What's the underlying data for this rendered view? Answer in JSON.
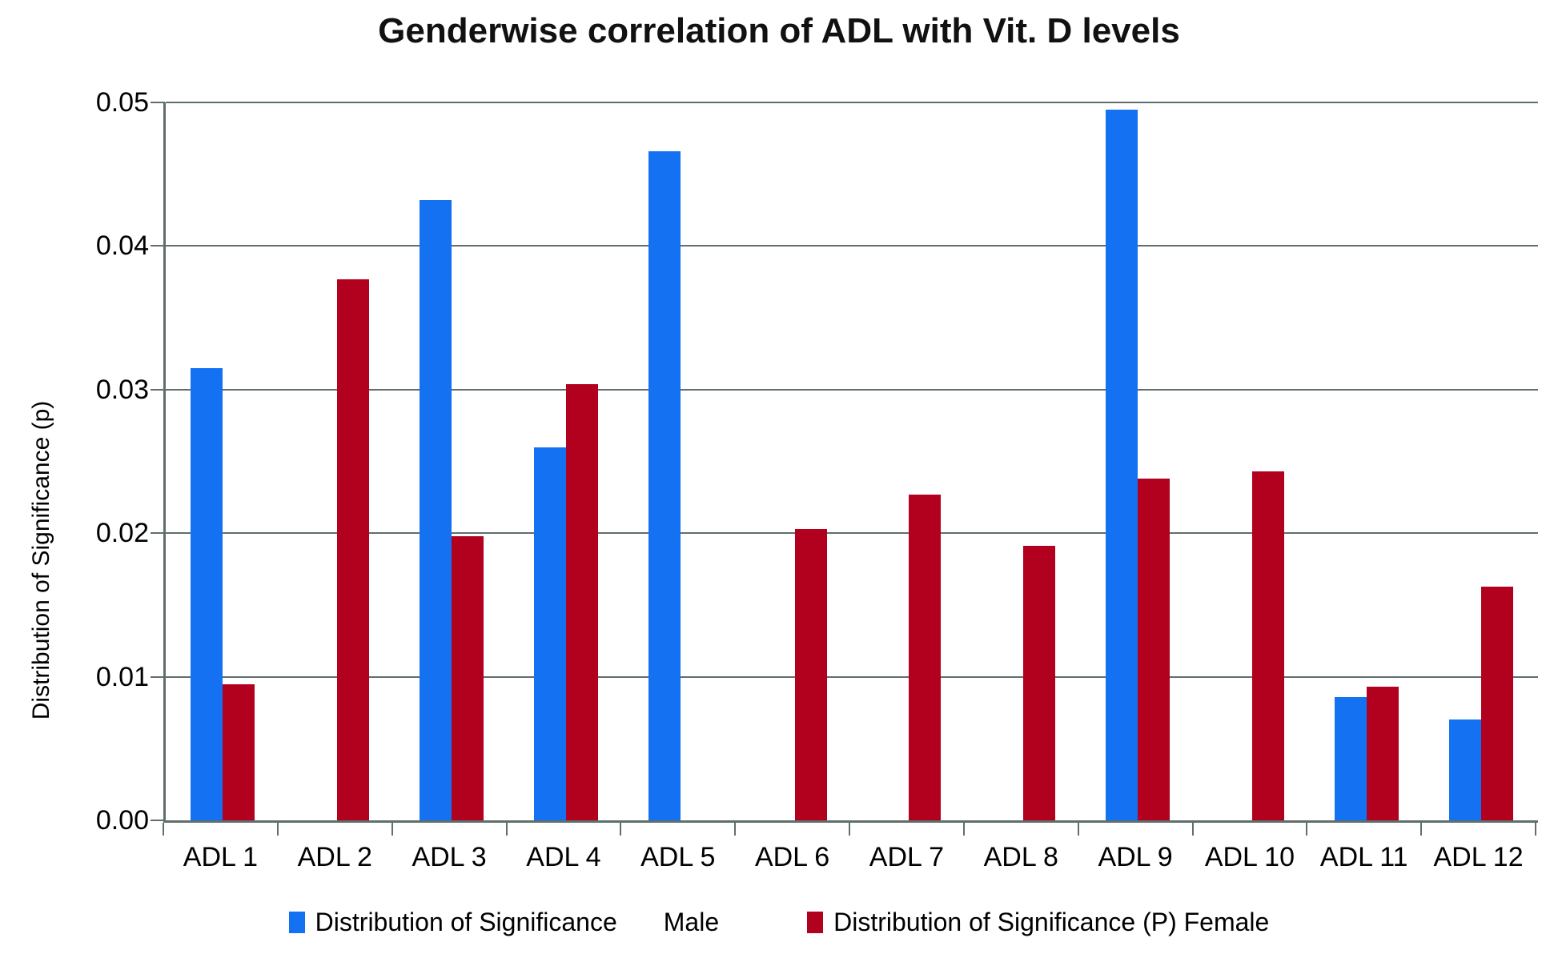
{
  "title": "Genderwise correlation of ADL with Vit. D levels",
  "y_axis": {
    "label": "Distribution of Significance (p)",
    "tick_labels": [
      "0.00",
      "0.01",
      "0.02",
      "0.03",
      "0.04",
      "0.05"
    ]
  },
  "colors": {
    "male_blue": "#1471F2",
    "female_red": "#B2001F",
    "gridline": "#5F6F6D",
    "axis": "#5F6F6D",
    "text": "#000000",
    "background": "#FFFFFF"
  },
  "chart_data": {
    "type": "bar",
    "title": "Genderwise correlation of ADL with Vit. D levels",
    "xlabel": "",
    "ylabel": "Distribution of Significance (p)",
    "ylim": [
      0,
      0.05
    ],
    "ytick_step": 0.01,
    "grid": true,
    "legend_position": "bottom",
    "categories": [
      "ADL 1",
      "ADL 2",
      "ADL 3",
      "ADL 4",
      "ADL 5",
      "ADL 6",
      "ADL 7",
      "ADL 8",
      "ADL 9",
      "ADL 10",
      "ADL 11",
      "ADL 12"
    ],
    "series": [
      {
        "name": "Distribution of Significance Male",
        "color": "#1471F2",
        "values": [
          0.0315,
          0,
          0.0432,
          0.026,
          0.0466,
          0,
          0,
          0,
          0.0495,
          0,
          0.0086,
          0.007
        ]
      },
      {
        "name": "Distribution of Significance (P) Female",
        "color": "#B2001F",
        "values": [
          0.0095,
          0.0377,
          0.0198,
          0.0304,
          0,
          0.0203,
          0.0227,
          0.0191,
          0.0238,
          0.0243,
          0.0093,
          0.0163
        ]
      }
    ]
  },
  "legend": {
    "entries": [
      {
        "label": "Distribution of Significance",
        "label2": "Male",
        "color": "#1471F2",
        "series_key": "male"
      },
      {
        "label": "Distribution of Significance (P) Female",
        "color": "#B2001F",
        "series_key": "female"
      }
    ]
  }
}
